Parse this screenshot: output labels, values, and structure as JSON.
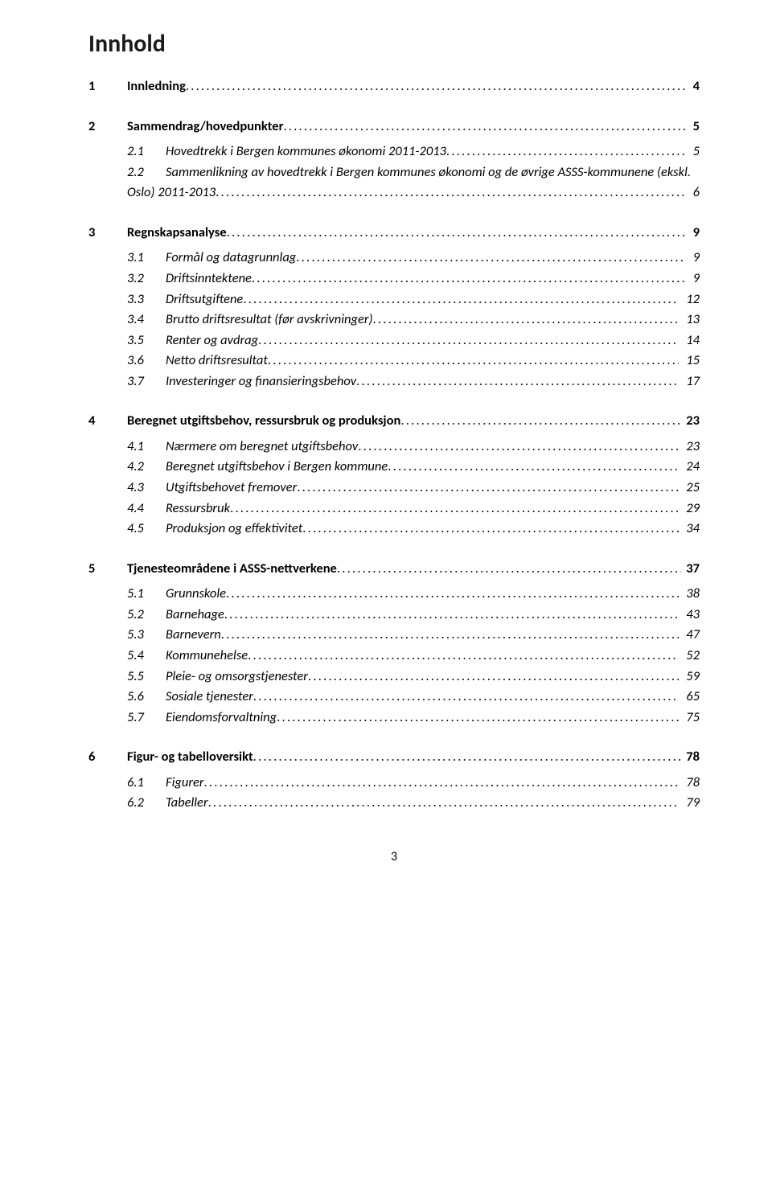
{
  "title": "Innhold",
  "page_number": "3",
  "toc": [
    {
      "kind": "l1",
      "num": "1",
      "label": "Innledning",
      "page": " 4",
      "style": "bold"
    },
    {
      "kind": "spacer-lg"
    },
    {
      "kind": "l1",
      "num": "2",
      "label": "Sammendrag/hovedpunkter",
      "page": " 5",
      "style": "bold"
    },
    {
      "kind": "spacer-sm"
    },
    {
      "kind": "l2",
      "num": "2.1",
      "label": "Hovedtrekk i Bergen kommunes økonomi 2011-2013",
      "page": " 5",
      "style": "italic"
    },
    {
      "kind": "l2-wrap",
      "num": "2.2",
      "line1": "Sammenlikning av hovedtrekk i Bergen kommunes økonomi og de øvrige ASSS-kommunene (ekskl.",
      "line2": "Oslo) 2011-2013",
      "page": " 6",
      "style": "italic"
    },
    {
      "kind": "spacer-lg"
    },
    {
      "kind": "l1",
      "num": "3",
      "label": "Regnskapsanalyse",
      "page": " 9",
      "style": "bold"
    },
    {
      "kind": "spacer-sm"
    },
    {
      "kind": "l2",
      "num": "3.1",
      "label": "Formål og datagrunnlag",
      "page": " 9",
      "style": "italic"
    },
    {
      "kind": "l2",
      "num": "3.2",
      "label": "Driftsinntektene",
      "page": " 9",
      "style": "italic"
    },
    {
      "kind": "l2",
      "num": "3.3",
      "label": "Driftsutgiftene",
      "page": " 12",
      "style": "italic"
    },
    {
      "kind": "l2",
      "num": "3.4",
      "label": "Brutto driftsresultat (før avskrivninger)",
      "page": " 13",
      "style": "italic"
    },
    {
      "kind": "l2",
      "num": "3.5",
      "label": "Renter og avdrag",
      "page": " 14",
      "style": "italic"
    },
    {
      "kind": "l2",
      "num": "3.6",
      "label": "Netto driftsresultat",
      "page": " 15",
      "style": "italic"
    },
    {
      "kind": "l2",
      "num": "3.7",
      "label": "Investeringer og finansieringsbehov",
      "page": " 17",
      "style": "italic"
    },
    {
      "kind": "spacer-lg"
    },
    {
      "kind": "l1",
      "num": "4",
      "label": "Beregnet utgiftsbehov, ressursbruk og produksjon",
      "page": "23",
      "style": "bold"
    },
    {
      "kind": "spacer-sm"
    },
    {
      "kind": "l2",
      "num": "4.1",
      "label": "Nærmere om beregnet utgiftsbehov",
      "page": " 23",
      "style": "italic"
    },
    {
      "kind": "l2",
      "num": "4.2",
      "label": "Beregnet utgiftsbehov i Bergen kommune",
      "page": " 24",
      "style": "italic"
    },
    {
      "kind": "l2",
      "num": "4.3",
      "label": "Utgiftsbehovet fremover",
      "page": " 25",
      "style": "italic"
    },
    {
      "kind": "l2",
      "num": "4.4",
      "label": "Ressursbruk",
      "page": " 29",
      "style": "italic"
    },
    {
      "kind": "l2",
      "num": "4.5",
      "label": "Produksjon og effektivitet",
      "page": " 34",
      "style": "italic"
    },
    {
      "kind": "spacer-lg"
    },
    {
      "kind": "l1",
      "num": "5",
      "label": "Tjenesteområdene i ASSS-nettverkene",
      "page": "37",
      "style": "bold"
    },
    {
      "kind": "spacer-sm"
    },
    {
      "kind": "l2",
      "num": "5.1",
      "label": "Grunnskole",
      "page": " 38",
      "style": "italic"
    },
    {
      "kind": "l2",
      "num": "5.2",
      "label": "Barnehage",
      "page": " 43",
      "style": "italic"
    },
    {
      "kind": "l2",
      "num": "5.3",
      "label": "Barnevern",
      "page": " 47",
      "style": "italic"
    },
    {
      "kind": "l2",
      "num": "5.4",
      "label": "Kommunehelse",
      "page": " 52",
      "style": "italic"
    },
    {
      "kind": "l2",
      "num": "5.5",
      "label": "Pleie- og omsorgstjenester",
      "page": " 59",
      "style": "italic"
    },
    {
      "kind": "l2",
      "num": "5.6",
      "label": "Sosiale tjenester",
      "page": " 65",
      "style": "italic"
    },
    {
      "kind": "l2",
      "num": "5.7",
      "label": "Eiendomsforvaltning",
      "page": " 75",
      "style": "italic"
    },
    {
      "kind": "spacer-lg"
    },
    {
      "kind": "l1",
      "num": "6",
      "label": "Figur- og tabelloversikt",
      "page": "78",
      "style": "bold"
    },
    {
      "kind": "spacer-sm"
    },
    {
      "kind": "l2",
      "num": "6.1",
      "label": "Figurer",
      "page": " 78",
      "style": "italic"
    },
    {
      "kind": "l2",
      "num": "6.2",
      "label": "Tabeller",
      "page": " 79",
      "style": "italic"
    }
  ]
}
